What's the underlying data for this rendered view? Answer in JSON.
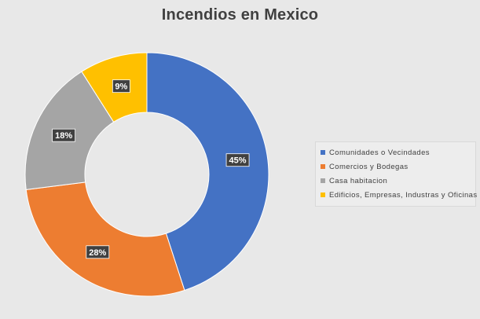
{
  "chart_data": {
    "type": "donut",
    "title": "Incendios en Mexico",
    "categories": [
      "Comunidades o Vecindades",
      "Comercios y Bodegas",
      "Casa habitacion",
      "Edificios, Empresas, Industras y Oficinas"
    ],
    "values": [
      45,
      28,
      18,
      9
    ],
    "data_labels": [
      "45%",
      "28%",
      "18%",
      "9%"
    ],
    "colors": [
      "#4472c4",
      "#ed7d31",
      "#a5a5a5",
      "#ffc000"
    ],
    "legend_position": "right"
  }
}
